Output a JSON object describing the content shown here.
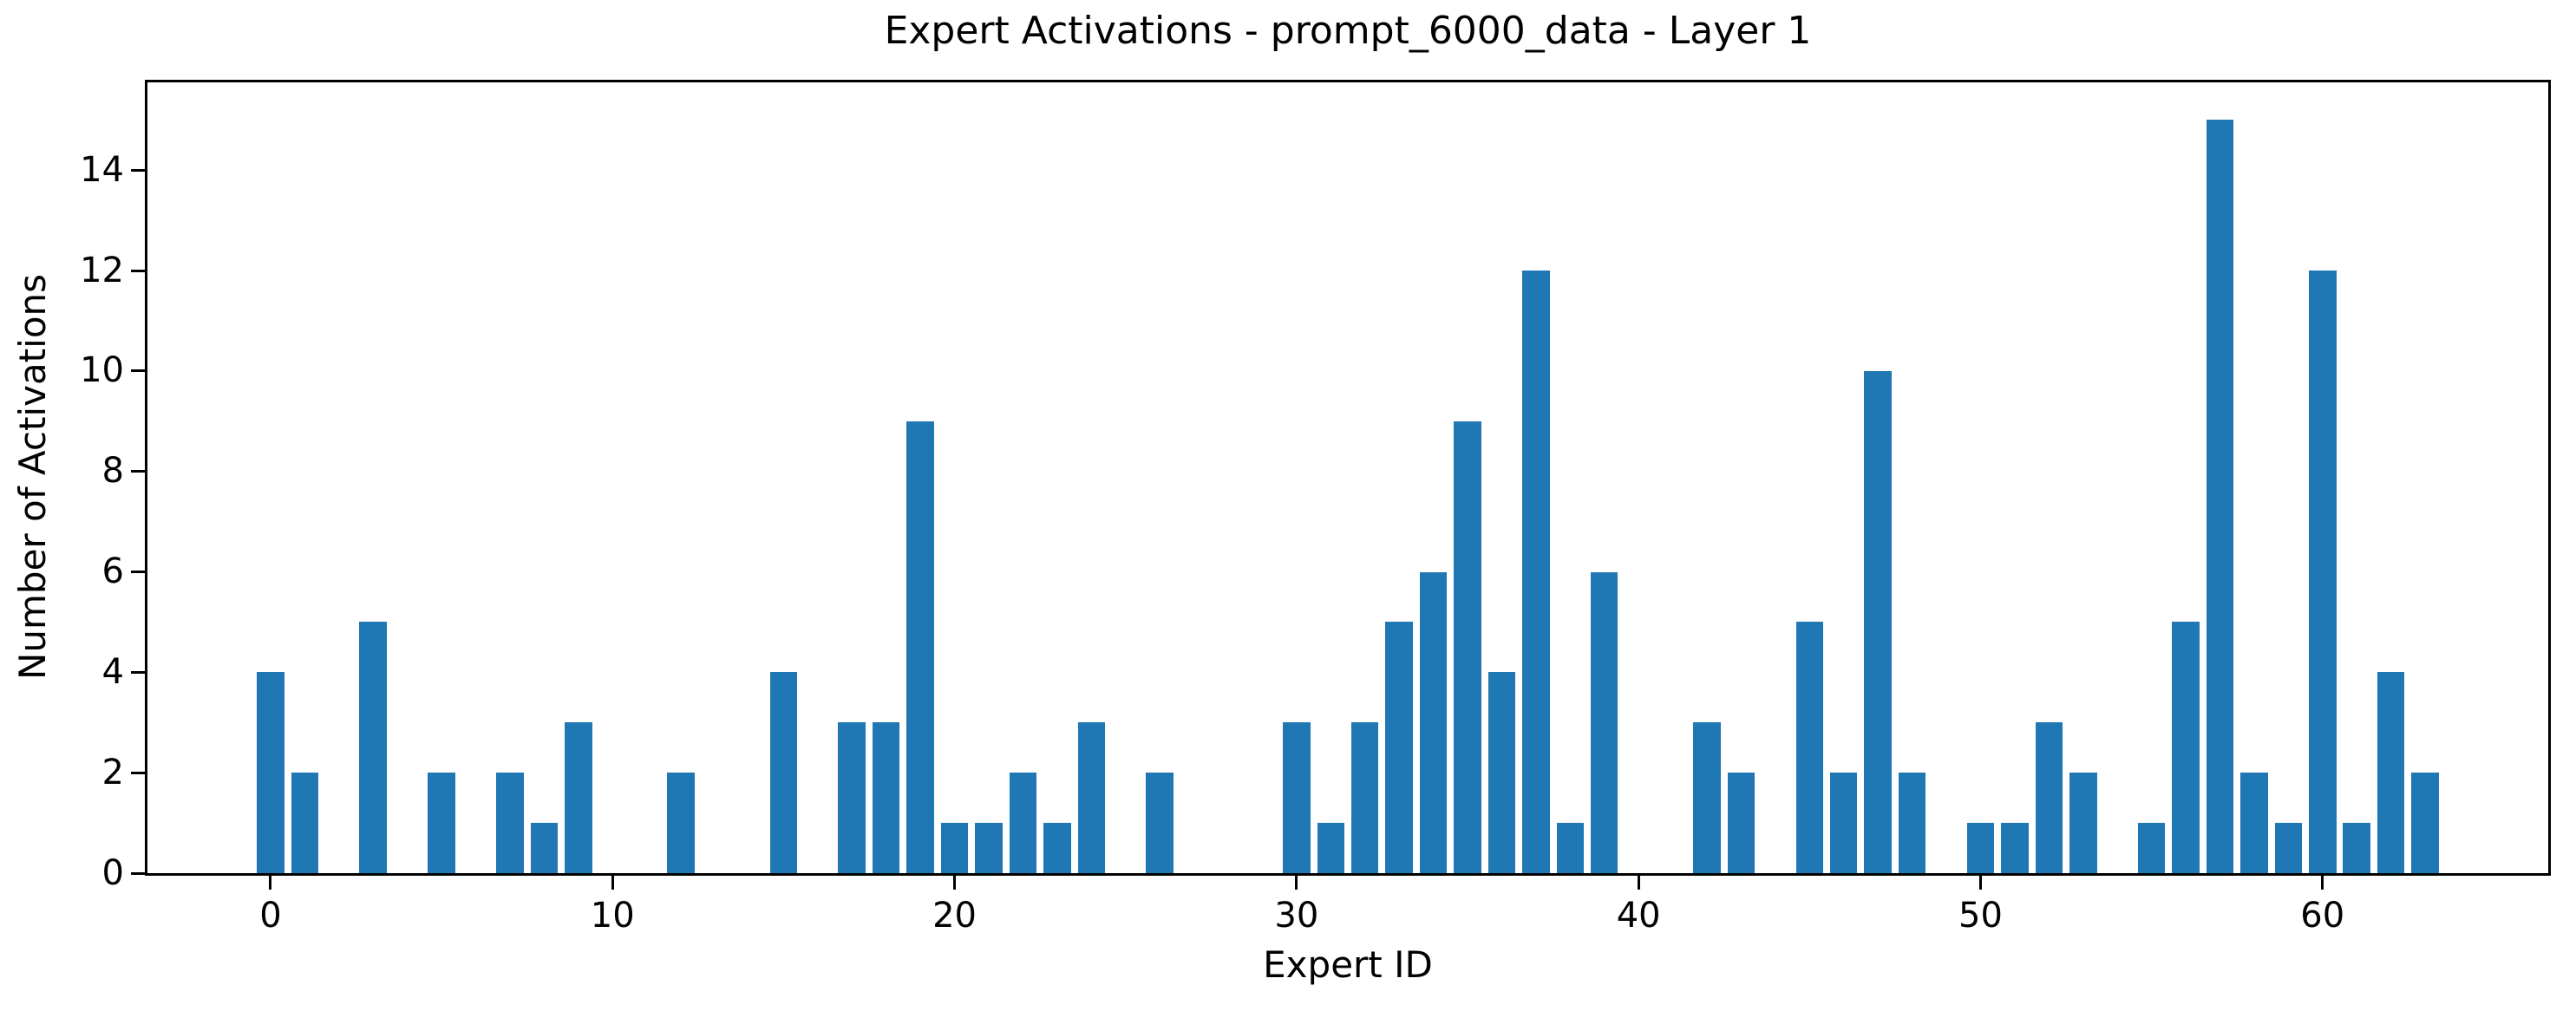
{
  "chart_data": {
    "type": "bar",
    "title": "Expert Activations - prompt_6000_data - Layer 1",
    "xlabel": "Expert ID",
    "ylabel": "Number of Activations",
    "x": [
      0,
      1,
      2,
      3,
      4,
      5,
      6,
      7,
      8,
      9,
      10,
      11,
      12,
      13,
      14,
      15,
      16,
      17,
      18,
      19,
      20,
      21,
      22,
      23,
      24,
      25,
      26,
      27,
      28,
      29,
      30,
      31,
      32,
      33,
      34,
      35,
      36,
      37,
      38,
      39,
      40,
      41,
      42,
      43,
      44,
      45,
      46,
      47,
      48,
      49,
      50,
      51,
      52,
      53,
      54,
      55,
      56,
      57,
      58,
      59,
      60,
      61,
      62,
      63
    ],
    "values": [
      4,
      2,
      0,
      5,
      0,
      2,
      0,
      2,
      1,
      3,
      0,
      0,
      2,
      0,
      0,
      4,
      0,
      3,
      3,
      9,
      1,
      1,
      2,
      1,
      3,
      0,
      2,
      0,
      0,
      0,
      3,
      1,
      3,
      5,
      6,
      9,
      4,
      12,
      1,
      6,
      0,
      0,
      3,
      2,
      0,
      5,
      2,
      10,
      2,
      0,
      1,
      1,
      3,
      2,
      0,
      1,
      5,
      15,
      2,
      1,
      12,
      1,
      4,
      2
    ],
    "bar_width": 0.8,
    "bar_color": "#1f77b4",
    "axis_color": "#000000",
    "xlim": [
      -3.6,
      66.6
    ],
    "ylim": [
      0,
      15.75
    ],
    "xticks": [
      0,
      10,
      20,
      30,
      40,
      50,
      60
    ],
    "yticks": [
      0,
      2,
      4,
      6,
      8,
      10,
      12,
      14
    ],
    "grid": false,
    "legend": null
  }
}
